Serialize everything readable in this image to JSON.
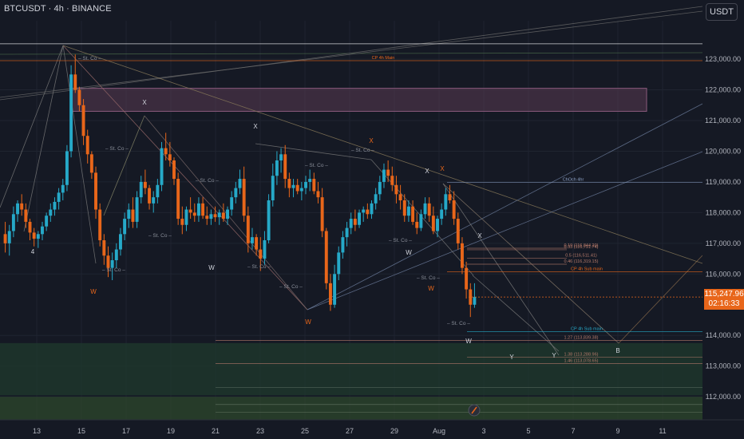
{
  "header": {
    "symbol_line": "BTCUSDT · 4h · BINANCE"
  },
  "axis_toggle": {
    "label": "USDT"
  },
  "last_price": {
    "price": "115,247.96",
    "countdown": "02:16:33"
  },
  "colors": {
    "bg": "#151924",
    "up": "#26a9c8",
    "down": "#e8661a",
    "axis_text": "#b2b5be",
    "grid": "#1f2430"
  },
  "chart_data": {
    "type": "candlestick",
    "title": "",
    "ylim": [
      111250,
      124250
    ],
    "y_ticks": [
      {
        "v": 123000,
        "label": "123,000.00"
      },
      {
        "v": 122000,
        "label": "122,000.00"
      },
      {
        "v": 121000,
        "label": "121,000.00"
      },
      {
        "v": 120000,
        "label": "120,000.00"
      },
      {
        "v": 119000,
        "label": "119,000.00"
      },
      {
        "v": 118000,
        "label": "118,000.00"
      },
      {
        "v": 117000,
        "label": "117,000.00"
      },
      {
        "v": 116000,
        "label": "116,000.00"
      },
      {
        "v": 114000,
        "label": "114,000.00"
      },
      {
        "v": 113000,
        "label": "113,000.00"
      },
      {
        "v": 112000,
        "label": "112,000.00"
      }
    ],
    "x_ticks": [
      "13",
      "15",
      "17",
      "19",
      "21",
      "23",
      "25",
      "27",
      "29",
      "Aug",
      "3",
      "5",
      "7",
      "9",
      "11"
    ],
    "candles": [
      [
        117300,
        117700,
        116700,
        117000
      ],
      [
        117000,
        117600,
        116600,
        117400
      ],
      [
        117400,
        118200,
        117200,
        117950
      ],
      [
        117950,
        118400,
        117700,
        118300
      ],
      [
        118300,
        118600,
        117900,
        118100
      ],
      [
        118100,
        118300,
        117500,
        117700
      ],
      [
        117700,
        117800,
        117100,
        117350
      ],
      [
        117350,
        117500,
        116900,
        117150
      ],
      [
        117150,
        117400,
        116850,
        117300
      ],
      [
        117300,
        117700,
        117100,
        117550
      ],
      [
        117550,
        118000,
        117400,
        117900
      ],
      [
        117900,
        118300,
        117700,
        118100
      ],
      [
        118100,
        118500,
        117900,
        118350
      ],
      [
        118350,
        118800,
        118100,
        118650
      ],
      [
        118650,
        119100,
        118400,
        118900
      ],
      [
        118900,
        120200,
        118700,
        120000
      ],
      [
        120000,
        122800,
        119800,
        122500
      ],
      [
        122500,
        123150,
        121900,
        122000
      ],
      [
        122000,
        122100,
        121300,
        121500
      ],
      [
        121500,
        121700,
        120200,
        120500
      ],
      [
        120500,
        120700,
        119600,
        119900
      ],
      [
        119900,
        120000,
        119100,
        119300
      ],
      [
        119300,
        119500,
        117800,
        118100
      ],
      [
        118100,
        118300,
        116900,
        117100
      ],
      [
        117100,
        117300,
        116300,
        116600
      ],
      [
        116600,
        116900,
        115900,
        116200
      ],
      [
        116200,
        116700,
        115800,
        116450
      ],
      [
        116450,
        117000,
        116200,
        116800
      ],
      [
        116800,
        117500,
        116600,
        117300
      ],
      [
        117300,
        118000,
        117100,
        117800
      ],
      [
        117800,
        118300,
        117500,
        118100
      ],
      [
        118100,
        118500,
        117500,
        117700
      ],
      [
        117700,
        118700,
        117500,
        118500
      ],
      [
        118500,
        119200,
        118300,
        119000
      ],
      [
        119000,
        119400,
        118600,
        118800
      ],
      [
        118800,
        118900,
        118100,
        118300
      ],
      [
        118300,
        118700,
        118000,
        118500
      ],
      [
        118500,
        119100,
        118300,
        118900
      ],
      [
        118900,
        120300,
        118700,
        120100
      ],
      [
        120100,
        120600,
        119700,
        119900
      ],
      [
        119900,
        120300,
        119500,
        119700
      ],
      [
        119700,
        119800,
        118900,
        119100
      ],
      [
        119100,
        119300,
        117600,
        117800
      ],
      [
        117800,
        118200,
        117300,
        117600
      ],
      [
        117600,
        118200,
        117400,
        118100
      ],
      [
        118100,
        118500,
        117800,
        118000
      ],
      [
        118000,
        118300,
        117700,
        117900
      ],
      [
        117900,
        118500,
        117700,
        118300
      ],
      [
        118300,
        118500,
        117800,
        117900
      ],
      [
        117900,
        118200,
        117600,
        117800
      ],
      [
        117800,
        118100,
        117600,
        117950
      ],
      [
        117950,
        118200,
        117700,
        117850
      ],
      [
        117850,
        118100,
        117600,
        118000
      ],
      [
        118000,
        118300,
        117700,
        117800
      ],
      [
        117800,
        118200,
        117600,
        118100
      ],
      [
        118100,
        118700,
        117900,
        118500
      ],
      [
        118500,
        119000,
        118300,
        118800
      ],
      [
        118800,
        119400,
        118600,
        119100
      ],
      [
        119100,
        119500,
        117700,
        117900
      ],
      [
        117900,
        118200,
        116700,
        117000
      ],
      [
        117000,
        117500,
        116800,
        117200
      ],
      [
        117200,
        117300,
        116600,
        116800
      ],
      [
        116800,
        117200,
        116100,
        116500
      ],
      [
        116500,
        117400,
        116300,
        117100
      ],
      [
        117100,
        118600,
        117000,
        118400
      ],
      [
        118400,
        119600,
        118200,
        119200
      ],
      [
        119200,
        120000,
        118900,
        119700
      ],
      [
        119700,
        120100,
        119300,
        119900
      ],
      [
        119900,
        120200,
        118800,
        119100
      ],
      [
        119100,
        119300,
        118500,
        118800
      ],
      [
        118800,
        119100,
        118500,
        118900
      ],
      [
        118900,
        119100,
        118600,
        118700
      ],
      [
        118700,
        119000,
        118400,
        118800
      ],
      [
        118800,
        119200,
        118600,
        119000
      ],
      [
        119000,
        119400,
        118700,
        119100
      ],
      [
        119100,
        119300,
        118600,
        118700
      ],
      [
        118700,
        119000,
        118300,
        118500
      ],
      [
        118500,
        118800,
        117200,
        117400
      ],
      [
        117400,
        117500,
        115500,
        115700
      ],
      [
        115700,
        116000,
        114800,
        115000
      ],
      [
        115000,
        116300,
        114900,
        116000
      ],
      [
        116000,
        116900,
        115800,
        116700
      ],
      [
        116700,
        117400,
        116500,
        117200
      ],
      [
        117200,
        117700,
        116900,
        117500
      ],
      [
        117500,
        118000,
        117300,
        117800
      ],
      [
        117800,
        118100,
        117400,
        117600
      ],
      [
        117600,
        118100,
        117500,
        118000
      ],
      [
        118000,
        118200,
        117700,
        118100
      ],
      [
        118100,
        118300,
        117800,
        117950
      ],
      [
        117950,
        118400,
        117800,
        118300
      ],
      [
        118300,
        118800,
        118100,
        118600
      ],
      [
        118600,
        119200,
        118400,
        119000
      ],
      [
        119000,
        119600,
        118800,
        119400
      ],
      [
        119400,
        119700,
        119000,
        119200
      ],
      [
        119200,
        119500,
        118700,
        118900
      ],
      [
        118900,
        119200,
        118300,
        118600
      ],
      [
        118600,
        118900,
        118100,
        118400
      ],
      [
        118400,
        118600,
        117700,
        117900
      ],
      [
        117900,
        118400,
        117700,
        118200
      ],
      [
        118200,
        118400,
        117600,
        117700
      ],
      [
        117700,
        118000,
        117300,
        117500
      ],
      [
        117500,
        118100,
        117400,
        117950
      ],
      [
        117950,
        118500,
        117800,
        118300
      ],
      [
        118300,
        118500,
        117700,
        117900
      ],
      [
        117900,
        118200,
        117300,
        117400
      ],
      [
        117400,
        117900,
        117200,
        117800
      ],
      [
        117800,
        118300,
        117600,
        118100
      ],
      [
        118100,
        118800,
        117900,
        118600
      ],
      [
        118600,
        118900,
        118300,
        118400
      ],
      [
        118400,
        118700,
        117600,
        117800
      ],
      [
        117800,
        118000,
        116800,
        117000
      ],
      [
        117000,
        117200,
        116000,
        116200
      ],
      [
        116200,
        116400,
        115200,
        115500
      ],
      [
        115500,
        115700,
        114600,
        115000
      ],
      [
        115000,
        115700,
        114900,
        115250
      ]
    ]
  },
  "overlays": {
    "hlines": [
      {
        "price": 123500,
        "label": "",
        "color": "#ffffff"
      },
      {
        "price": 122950,
        "label": "CP 4h Main",
        "color": "#e8661a"
      },
      {
        "price": 118980,
        "label": "ChOch 4hr",
        "color": "#8ea3c8"
      },
      {
        "price": 116070,
        "label": "CP 4h Sub main",
        "color": "#e8661a"
      },
      {
        "price": 114120,
        "label": "CP 4h Sub main",
        "color": "#26a9c8"
      },
      {
        "price": 113840,
        "label": "1.27 (113,839.38)",
        "color": "#b77b6b"
      },
      {
        "price": 113290,
        "label": "1.38 (113,288.96)",
        "color": "#b77b6b"
      },
      {
        "price": 113080,
        "label": "1.46 (113,078.65)",
        "color": "#b77b6b"
      },
      {
        "price": 116840,
        "label": "0.19 (116,844.20)",
        "color": "#b77b6b"
      },
      {
        "price": 116790,
        "label": "0.33 (116,791.74)",
        "color": "#b77b6b"
      },
      {
        "price": 116510,
        "label": "0.5 (116,511.41)",
        "color": "#b77b6b"
      },
      {
        "price": 116320,
        "label": "0.46 (116,319.15)",
        "color": "#b77b6b"
      }
    ],
    "markers": [
      {
        "t": "X",
        "color": "#d1d4dc"
      },
      {
        "t": "X",
        "color": "#d1d4dc"
      },
      {
        "t": "X",
        "color": "#e8661a"
      },
      {
        "t": "X",
        "color": "#d1d4dc"
      },
      {
        "t": "X",
        "color": "#e8661a"
      },
      {
        "t": "X",
        "color": "#d1d4dc"
      },
      {
        "t": "W",
        "color": "#e8661a"
      },
      {
        "t": "W",
        "color": "#d1d4dc"
      },
      {
        "t": "W",
        "color": "#e8661a"
      },
      {
        "t": "W",
        "color": "#d1d4dc"
      },
      {
        "t": "W",
        "color": "#e8661a"
      },
      {
        "t": "W",
        "color": "#d1d4dc"
      },
      {
        "t": "Y",
        "color": "#d1d4dc"
      },
      {
        "t": "Y",
        "color": "#d1d4dc"
      },
      {
        "t": "B",
        "color": "#d1d4dc"
      },
      {
        "t": "4",
        "color": "#d1d4dc"
      }
    ],
    "st_co_label": "St. Co",
    "zones": [
      "supply",
      "demand-1",
      "demand-2"
    ]
  }
}
